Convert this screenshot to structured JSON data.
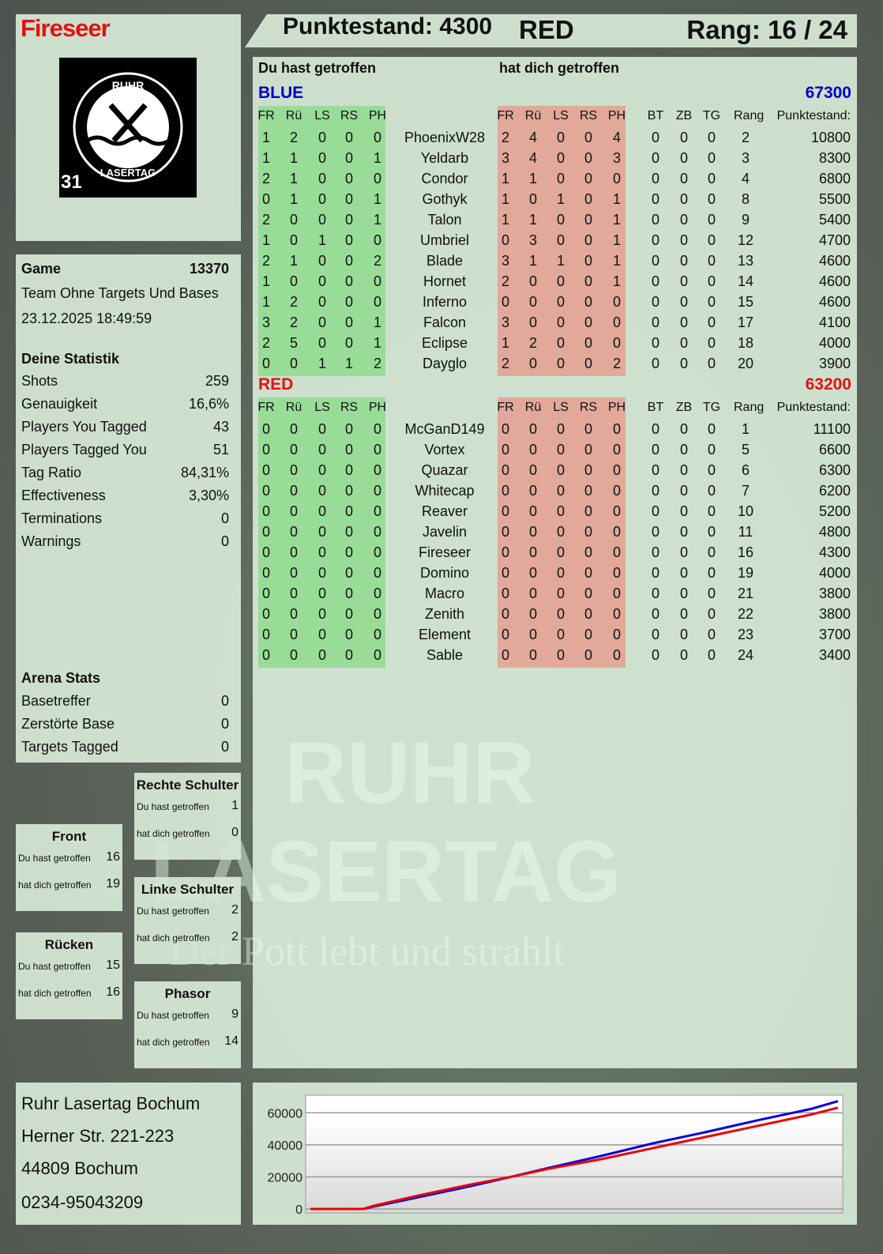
{
  "player": {
    "name": "Fireseer",
    "score_label": "Punktestand: 4300",
    "team": "RED",
    "rank_label": "Rang: 16 / 24",
    "logo_text_top": "RUHR",
    "logo_text_bottom": "LASERTAG",
    "logo_badge": "31"
  },
  "colors": {
    "red": "#e31212",
    "blue": "#0000cc",
    "green_bg": "#98dc98",
    "red_bg": "#e2a89a"
  },
  "main": {
    "you_hit": "Du hast getroffen",
    "hit_you": "hat dich getroffen",
    "columns": [
      "FR",
      "Rü",
      "LS",
      "RS",
      "PH",
      "FR",
      "Rü",
      "LS",
      "RS",
      "PH",
      "BT",
      "ZB",
      "TG",
      "Rang",
      "Punktestand:"
    ],
    "teams": [
      {
        "name": "BLUE",
        "total": "67300",
        "rows": [
          [
            "1",
            "2",
            "0",
            "0",
            "0",
            "PhoenixW28",
            "2",
            "4",
            "0",
            "0",
            "4",
            "0",
            "0",
            "0",
            "2",
            "10800"
          ],
          [
            "1",
            "1",
            "0",
            "0",
            "1",
            "Yeldarb",
            "3",
            "4",
            "0",
            "0",
            "3",
            "0",
            "0",
            "0",
            "3",
            "8300"
          ],
          [
            "2",
            "1",
            "0",
            "0",
            "0",
            "Condor",
            "1",
            "1",
            "0",
            "0",
            "0",
            "0",
            "0",
            "0",
            "4",
            "6800"
          ],
          [
            "0",
            "1",
            "0",
            "0",
            "1",
            "Gothyk",
            "1",
            "0",
            "1",
            "0",
            "1",
            "0",
            "0",
            "0",
            "8",
            "5500"
          ],
          [
            "2",
            "0",
            "0",
            "0",
            "1",
            "Talon",
            "1",
            "1",
            "0",
            "0",
            "1",
            "0",
            "0",
            "0",
            "9",
            "5400"
          ],
          [
            "1",
            "0",
            "1",
            "0",
            "0",
            "Umbriel",
            "0",
            "3",
            "0",
            "0",
            "1",
            "0",
            "0",
            "0",
            "12",
            "4700"
          ],
          [
            "2",
            "1",
            "0",
            "0",
            "2",
            "Blade",
            "3",
            "1",
            "1",
            "0",
            "1",
            "0",
            "0",
            "0",
            "13",
            "4600"
          ],
          [
            "1",
            "0",
            "0",
            "0",
            "0",
            "Hornet",
            "2",
            "0",
            "0",
            "0",
            "1",
            "0",
            "0",
            "0",
            "14",
            "4600"
          ],
          [
            "1",
            "2",
            "0",
            "0",
            "0",
            "Inferno",
            "0",
            "0",
            "0",
            "0",
            "0",
            "0",
            "0",
            "0",
            "15",
            "4600"
          ],
          [
            "3",
            "2",
            "0",
            "0",
            "1",
            "Falcon",
            "3",
            "0",
            "0",
            "0",
            "0",
            "0",
            "0",
            "0",
            "17",
            "4100"
          ],
          [
            "2",
            "5",
            "0",
            "0",
            "1",
            "Eclipse",
            "1",
            "2",
            "0",
            "0",
            "0",
            "0",
            "0",
            "0",
            "18",
            "4000"
          ],
          [
            "0",
            "0",
            "1",
            "1",
            "2",
            "Dayglo",
            "2",
            "0",
            "0",
            "0",
            "2",
            "0",
            "0",
            "0",
            "20",
            "3900"
          ]
        ]
      },
      {
        "name": "RED",
        "total": "63200",
        "rows": [
          [
            "0",
            "0",
            "0",
            "0",
            "0",
            "McGanD149",
            "0",
            "0",
            "0",
            "0",
            "0",
            "0",
            "0",
            "0",
            "1",
            "11100"
          ],
          [
            "0",
            "0",
            "0",
            "0",
            "0",
            "Vortex",
            "0",
            "0",
            "0",
            "0",
            "0",
            "0",
            "0",
            "0",
            "5",
            "6600"
          ],
          [
            "0",
            "0",
            "0",
            "0",
            "0",
            "Quazar",
            "0",
            "0",
            "0",
            "0",
            "0",
            "0",
            "0",
            "0",
            "6",
            "6300"
          ],
          [
            "0",
            "0",
            "0",
            "0",
            "0",
            "Whitecap",
            "0",
            "0",
            "0",
            "0",
            "0",
            "0",
            "0",
            "0",
            "7",
            "6200"
          ],
          [
            "0",
            "0",
            "0",
            "0",
            "0",
            "Reaver",
            "0",
            "0",
            "0",
            "0",
            "0",
            "0",
            "0",
            "0",
            "10",
            "5200"
          ],
          [
            "0",
            "0",
            "0",
            "0",
            "0",
            "Javelin",
            "0",
            "0",
            "0",
            "0",
            "0",
            "0",
            "0",
            "0",
            "11",
            "4800"
          ],
          [
            "0",
            "0",
            "0",
            "0",
            "0",
            "Fireseer",
            "0",
            "0",
            "0",
            "0",
            "0",
            "0",
            "0",
            "0",
            "16",
            "4300"
          ],
          [
            "0",
            "0",
            "0",
            "0",
            "0",
            "Domino",
            "0",
            "0",
            "0",
            "0",
            "0",
            "0",
            "0",
            "0",
            "19",
            "4000"
          ],
          [
            "0",
            "0",
            "0",
            "0",
            "0",
            "Macro",
            "0",
            "0",
            "0",
            "0",
            "0",
            "0",
            "0",
            "0",
            "21",
            "3800"
          ],
          [
            "0",
            "0",
            "0",
            "0",
            "0",
            "Zenith",
            "0",
            "0",
            "0",
            "0",
            "0",
            "0",
            "0",
            "0",
            "22",
            "3800"
          ],
          [
            "0",
            "0",
            "0",
            "0",
            "0",
            "Element",
            "0",
            "0",
            "0",
            "0",
            "0",
            "0",
            "0",
            "0",
            "23",
            "3700"
          ],
          [
            "0",
            "0",
            "0",
            "0",
            "0",
            "Sable",
            "0",
            "0",
            "0",
            "0",
            "0",
            "0",
            "0",
            "0",
            "24",
            "3400"
          ]
        ]
      }
    ]
  },
  "game": {
    "label": "Game",
    "id": "13370",
    "mode": "Team Ohne Targets Und Bases",
    "datetime": "23.12.2025 18:49:59",
    "stats_title": "Deine Statistik",
    "stats": [
      [
        "Shots",
        "259"
      ],
      [
        "Genauigkeit",
        "16,6%"
      ],
      [
        "Players You Tagged",
        "43"
      ],
      [
        "Players Tagged You",
        "51"
      ],
      [
        "Tag Ratio",
        "84,31%"
      ],
      [
        "Effectiveness",
        "3,30%"
      ],
      [
        "Terminations",
        "0"
      ],
      [
        "Warnings",
        "0"
      ]
    ],
    "arena_title": "Arena Stats",
    "arena": [
      [
        "Basetreffer",
        "0"
      ],
      [
        "Zerstörte Base",
        "0"
      ],
      [
        "Targets Tagged",
        "0"
      ]
    ]
  },
  "zones": [
    {
      "title": "Rechte Schulter",
      "you_hit_label": "Du hast getroffen",
      "you_hit": "1",
      "hit_you_label": "hat dich getroffen",
      "hit_you": "0"
    },
    {
      "title": "Front",
      "you_hit_label": "Du hast getroffen",
      "you_hit": "16",
      "hit_you_label": "hat dich getroffen",
      "hit_you": "19"
    },
    {
      "title": "Linke Schulter",
      "you_hit_label": "Du hast getroffen",
      "you_hit": "2",
      "hit_you_label": "hat dich getroffen",
      "hit_you": "2"
    },
    {
      "title": "Rücken",
      "you_hit_label": "Du hast getroffen",
      "you_hit": "15",
      "hit_you_label": "hat dich getroffen",
      "hit_you": "16"
    },
    {
      "title": "Phasor",
      "you_hit_label": "Du hast getroffen",
      "you_hit": "9",
      "hit_you_label": "hat dich getroffen",
      "hit_you": "14"
    }
  ],
  "address": {
    "line1": "Ruhr Lasertag Bochum",
    "line2": "Herner Str. 221-223",
    "line3": "44809 Bochum",
    "line4": "0234-95043209"
  },
  "watermark": {
    "line1": "RUHR",
    "line2": "LASERTAG",
    "slogan": "Der Pott lebt und strahlt"
  },
  "chart_data": {
    "type": "line",
    "x": [
      0,
      10,
      12,
      20,
      30,
      38,
      45,
      55,
      65,
      75,
      85,
      95,
      100
    ],
    "ylim": [
      0,
      71000
    ],
    "yticks": [
      0,
      20000,
      40000,
      60000
    ],
    "grid": true,
    "series": [
      {
        "color": "#0000ee",
        "values": [
          0,
          0,
          1500,
          7000,
          14000,
          20000,
          25500,
          33000,
          41000,
          48000,
          55500,
          62500,
          67300
        ]
      },
      {
        "color": "#ee0000",
        "values": [
          0,
          0,
          2000,
          8000,
          15000,
          20000,
          25000,
          31000,
          38000,
          45000,
          52000,
          59000,
          63200
        ]
      }
    ]
  }
}
